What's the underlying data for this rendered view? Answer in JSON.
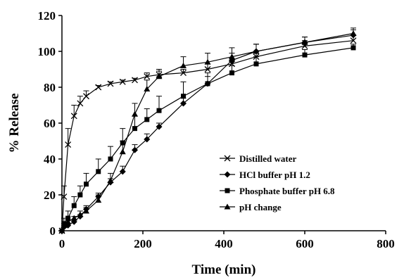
{
  "chart_data": {
    "type": "line",
    "xlabel": "Time (min)",
    "ylabel": "% Release",
    "xlim": [
      0,
      800
    ],
    "ylim": [
      0,
      120
    ],
    "xticks": [
      0,
      200,
      400,
      600,
      800
    ],
    "yticks": [
      0,
      20,
      40,
      60,
      80,
      100,
      120
    ],
    "legend_position": "bottom-right",
    "grid": false,
    "series": [
      {
        "name": "Distilled water",
        "marker": "x",
        "x": [
          0,
          5,
          15,
          30,
          45,
          60,
          90,
          120,
          150,
          180,
          210,
          240,
          300,
          360,
          420,
          480,
          600,
          720
        ],
        "y": [
          0,
          19,
          48,
          64,
          71,
          75,
          80,
          82,
          83,
          84,
          86,
          87,
          88,
          90,
          93,
          97,
          103,
          106
        ],
        "err": [
          0,
          6,
          9,
          6,
          4,
          3,
          1,
          1,
          1,
          1,
          2,
          2,
          2,
          3,
          3,
          3,
          3,
          3
        ]
      },
      {
        "name": "HCl buffer pH 1.2",
        "marker": "diamond",
        "x": [
          0,
          5,
          15,
          30,
          45,
          60,
          90,
          120,
          150,
          180,
          210,
          240,
          300,
          360,
          420,
          480,
          600,
          720
        ],
        "y": [
          0,
          2,
          3,
          5,
          8,
          12,
          19,
          27,
          33,
          45,
          51,
          58,
          71,
          82,
          95,
          100,
          105,
          109
        ],
        "err": [
          0,
          1,
          1,
          1,
          1,
          2,
          2,
          2,
          3,
          3,
          3,
          2,
          3,
          4,
          4,
          4,
          3,
          3
        ]
      },
      {
        "name": "Phosphate buffer pH 6.8",
        "marker": "square",
        "x": [
          0,
          5,
          15,
          30,
          45,
          60,
          90,
          120,
          150,
          180,
          210,
          240,
          300,
          360,
          420,
          480,
          600,
          720
        ],
        "y": [
          0,
          4,
          7,
          14,
          20,
          26,
          33,
          40,
          49,
          57,
          62,
          67,
          75,
          82,
          88,
          93,
          98,
          102
        ],
        "err": [
          0,
          3,
          4,
          5,
          5,
          6,
          7,
          7,
          8,
          7,
          6,
          8,
          8,
          6,
          4,
          4,
          3,
          2
        ]
      },
      {
        "name": "pH change",
        "marker": "triangle",
        "x": [
          0,
          5,
          15,
          30,
          45,
          60,
          90,
          120,
          150,
          180,
          210,
          240,
          300,
          360,
          420,
          480,
          600,
          720
        ],
        "y": [
          0,
          3,
          5,
          7,
          9,
          11,
          17,
          28,
          44,
          65,
          79,
          86,
          92,
          94,
          97,
          100,
          105,
          110
        ],
        "err": [
          0,
          1,
          1,
          1,
          2,
          2,
          3,
          4,
          6,
          6,
          5,
          4,
          5,
          5,
          5,
          4,
          3,
          3
        ]
      }
    ]
  }
}
